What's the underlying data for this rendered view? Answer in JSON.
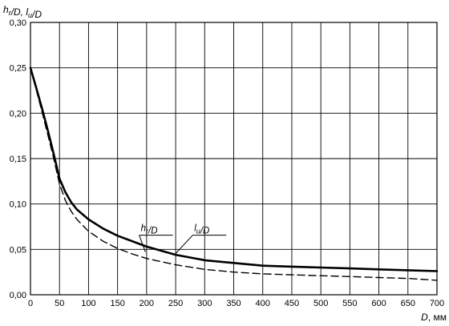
{
  "chart_data": {
    "type": "line",
    "title": "",
    "ylabel": "h_r/D, l_u/D",
    "xlabel": "D, мм",
    "xlim": [
      0,
      700
    ],
    "ylim": [
      0,
      0.3
    ],
    "x_ticks": [
      0,
      50,
      100,
      150,
      200,
      250,
      300,
      350,
      400,
      450,
      500,
      550,
      600,
      650,
      700
    ],
    "y_ticks": [
      "0,00",
      "0,05",
      "0,10",
      "0,15",
      "0,20",
      "0,25",
      "0,30"
    ],
    "grid": true,
    "series": [
      {
        "name": "h_r/D",
        "style": "solid",
        "color": "#000000",
        "x": [
          0,
          10,
          20,
          30,
          40,
          50,
          60,
          70,
          80,
          100,
          125,
          150,
          175,
          200,
          250,
          300,
          350,
          400,
          450,
          500,
          550,
          600,
          650,
          700
        ],
        "y": [
          0.25,
          0.228,
          0.205,
          0.181,
          0.155,
          0.128,
          0.113,
          0.102,
          0.094,
          0.083,
          0.073,
          0.065,
          0.059,
          0.053,
          0.044,
          0.038,
          0.035,
          0.032,
          0.031,
          0.03,
          0.029,
          0.028,
          0.027,
          0.026
        ]
      },
      {
        "name": "l_u/D",
        "style": "dashed",
        "color": "#000000",
        "x": [
          0,
          10,
          20,
          30,
          40,
          50,
          60,
          70,
          80,
          100,
          125,
          150,
          175,
          200,
          250,
          300,
          350,
          400,
          450,
          500,
          550,
          600,
          650,
          700
        ],
        "y": [
          0.25,
          0.226,
          0.201,
          0.176,
          0.15,
          0.122,
          0.104,
          0.092,
          0.083,
          0.07,
          0.059,
          0.051,
          0.045,
          0.04,
          0.033,
          0.028,
          0.025,
          0.023,
          0.022,
          0.021,
          0.02,
          0.019,
          0.018,
          0.016
        ]
      }
    ],
    "annotations": [
      {
        "text": "h_r/D",
        "x": 190,
        "y": 0.07,
        "points_to": [
          198,
          0.047
        ]
      },
      {
        "text": "l_u/D",
        "x": 282,
        "y": 0.07,
        "points_to": [
          248,
          0.044
        ]
      }
    ]
  }
}
